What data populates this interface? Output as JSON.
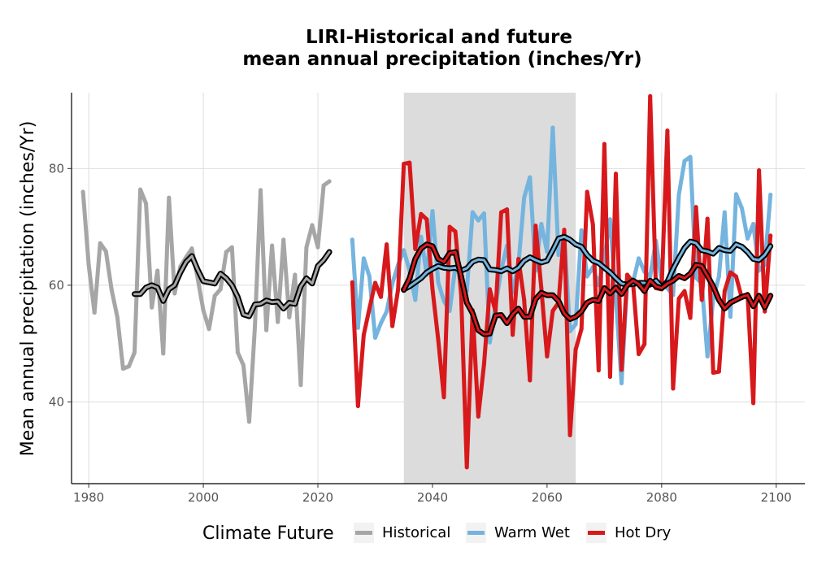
{
  "chart_data": {
    "type": "line",
    "title_line1": "LIRI-Historical and future",
    "title_line2": "mean annual precipitation (inches/Yr)",
    "xlabel": "",
    "ylabel": "Mean annual precipitation (inches/Yr)",
    "xlim": [
      1977,
      2105
    ],
    "ylim": [
      26,
      93
    ],
    "x_ticks": [
      1980,
      2000,
      2020,
      2040,
      2060,
      2080,
      2100
    ],
    "y_ticks": [
      40,
      60,
      80
    ],
    "grid": true,
    "shaded_period": [
      2035,
      2065
    ],
    "legend": {
      "title": "Climate Future",
      "position": "bottom",
      "items": [
        {
          "label": "Historical",
          "color": "#a6a6a6"
        },
        {
          "label": "Warm Wet",
          "color": "#74b4de"
        },
        {
          "label": "Hot Dry",
          "color": "#d7191c"
        }
      ]
    },
    "series": [
      {
        "name": "Historical",
        "color": "#a6a6a6",
        "x": [
          1979,
          1980,
          1981,
          1982,
          1983,
          1984,
          1985,
          1986,
          1987,
          1988,
          1989,
          1990,
          1991,
          1992,
          1993,
          1994,
          1995,
          1996,
          1997,
          1998,
          1999,
          2000,
          2001,
          2002,
          2003,
          2004,
          2005,
          2006,
          2007,
          2008,
          2009,
          2010,
          2011,
          2012,
          2013,
          2014,
          2015,
          2016,
          2017,
          2018,
          2019,
          2020,
          2021,
          2022
        ],
        "values": [
          76,
          63.5,
          55.3,
          67.2,
          65.8,
          59.2,
          54.5,
          45.7,
          46.1,
          48.5,
          76.4,
          74,
          56.2,
          62.5,
          48.3,
          75,
          58.6,
          63.2,
          64.8,
          66.3,
          61.3,
          55.7,
          52.5,
          58.2,
          59.3,
          65.7,
          66.5,
          48.5,
          46.3,
          36.6,
          52.8,
          76.3,
          52.3,
          66.8,
          53.7,
          67.8,
          54.5,
          61.8,
          42.9,
          66.5,
          70.3,
          66.5,
          77.1,
          77.8
        ]
      },
      {
        "name": "Historical rolling mean",
        "color": "#000000",
        "x": [
          1988,
          1989,
          1990,
          1991,
          1992,
          1993,
          1994,
          1995,
          1996,
          1997,
          1998,
          1999,
          2000,
          2001,
          2002,
          2003,
          2004,
          2005,
          2006,
          2007,
          2008,
          2009,
          2010,
          2011,
          2012,
          2013,
          2014,
          2015,
          2016,
          2017,
          2018,
          2019,
          2020,
          2021,
          2022
        ],
        "values": [
          58.5,
          58.5,
          59.6,
          60,
          59.6,
          57.3,
          59.3,
          60,
          62.2,
          64,
          65,
          62.7,
          60.7,
          60.5,
          60.3,
          62,
          61.2,
          60,
          58,
          55,
          54.7,
          56.7,
          56.8,
          57.4,
          57.1,
          57.2,
          56,
          57,
          56.8,
          59.8,
          61.2,
          60.3,
          63.3,
          64.3,
          65.7
        ]
      },
      {
        "name": "Warm Wet",
        "color": "#74b4de",
        "x": [
          2026,
          2027,
          2028,
          2029,
          2030,
          2031,
          2032,
          2033,
          2034,
          2035,
          2036,
          2037,
          2038,
          2039,
          2040,
          2041,
          2042,
          2043,
          2044,
          2045,
          2046,
          2047,
          2048,
          2049,
          2050,
          2051,
          2052,
          2053,
          2054,
          2055,
          2056,
          2057,
          2058,
          2059,
          2060,
          2061,
          2062,
          2063,
          2064,
          2065,
          2066,
          2067,
          2068,
          2069,
          2070,
          2071,
          2072,
          2073,
          2074,
          2075,
          2076,
          2077,
          2078,
          2079,
          2080,
          2081,
          2082,
          2083,
          2084,
          2085,
          2086,
          2087,
          2088,
          2089,
          2090,
          2091,
          2092,
          2093,
          2094,
          2095,
          2096,
          2097,
          2098,
          2099
        ],
        "values": [
          67.8,
          52.7,
          64.6,
          61.5,
          51,
          53.5,
          55.5,
          60.3,
          63.5,
          66,
          62.5,
          57.5,
          68.3,
          61.8,
          72.7,
          60.5,
          57.3,
          55.6,
          63.2,
          61.3,
          59,
          72.5,
          71.1,
          72.3,
          50.2,
          56.5,
          62.6,
          66.8,
          58.8,
          63.6,
          75,
          78.5,
          62.5,
          70.5,
          65.7,
          87,
          65.2,
          68.6,
          52.1,
          53.3,
          69.4,
          61.5,
          63.1,
          60,
          64.8,
          71.3,
          58,
          43.2,
          60.6,
          60.5,
          64.6,
          62.3,
          61.5,
          67.6,
          60.5,
          59.5,
          58.3,
          75.5,
          81.3,
          82,
          61.3,
          60.3,
          47.8,
          57.7,
          61.5,
          72.5,
          54.6,
          75.6,
          73.2,
          68,
          70.5,
          62.5,
          63.5,
          75.5
        ]
      },
      {
        "name": "Warm Wet rolling mean",
        "color": "#000000",
        "x": [
          2035,
          2036,
          2037,
          2038,
          2039,
          2040,
          2041,
          2042,
          2043,
          2044,
          2045,
          2046,
          2047,
          2048,
          2049,
          2050,
          2051,
          2052,
          2053,
          2054,
          2055,
          2056,
          2057,
          2058,
          2059,
          2060,
          2061,
          2062,
          2063,
          2064,
          2065,
          2066,
          2067,
          2068,
          2069,
          2070,
          2071,
          2072,
          2073,
          2074,
          2075,
          2076,
          2077,
          2078,
          2079,
          2080,
          2081,
          2082,
          2083,
          2084,
          2085,
          2086,
          2087,
          2088,
          2089,
          2090,
          2091,
          2092,
          2093,
          2094,
          2095,
          2096,
          2097,
          2098,
          2099
        ],
        "values": [
          59.3,
          59.8,
          60.5,
          61.2,
          62.2,
          62.8,
          63.3,
          63,
          62.9,
          63,
          62.5,
          62.9,
          64,
          64.4,
          64.3,
          62.7,
          62.6,
          62.4,
          62.9,
          62.4,
          63,
          64.2,
          64.8,
          64.3,
          63.9,
          64.2,
          66,
          68,
          68.3,
          67.8,
          67,
          66.6,
          65.2,
          64.2,
          63.8,
          63,
          62.2,
          61.2,
          60.3,
          60.1,
          60.2,
          60.4,
          60.4,
          60.1,
          60.8,
          59.7,
          60.6,
          62.8,
          64.7,
          66.4,
          67.5,
          67.2,
          66,
          65.8,
          65.4,
          66.4,
          66,
          65.9,
          67,
          66.6,
          65.7,
          64.5,
          64.3,
          65.2,
          66.7
        ]
      },
      {
        "name": "Hot Dry",
        "color": "#d7191c",
        "x": [
          2026,
          2027,
          2028,
          2029,
          2030,
          2031,
          2032,
          2033,
          2034,
          2035,
          2036,
          2037,
          2038,
          2039,
          2040,
          2041,
          2042,
          2043,
          2044,
          2045,
          2046,
          2047,
          2048,
          2049,
          2050,
          2051,
          2052,
          2053,
          2054,
          2055,
          2056,
          2057,
          2058,
          2059,
          2060,
          2061,
          2062,
          2063,
          2064,
          2065,
          2066,
          2067,
          2068,
          2069,
          2070,
          2071,
          2072,
          2073,
          2074,
          2075,
          2076,
          2077,
          2078,
          2079,
          2080,
          2081,
          2082,
          2083,
          2084,
          2085,
          2086,
          2087,
          2088,
          2089,
          2090,
          2091,
          2092,
          2093,
          2094,
          2095,
          2096,
          2097,
          2098,
          2099
        ],
        "values": [
          60.5,
          39.3,
          51.5,
          56,
          60.4,
          58,
          67,
          53,
          59.3,
          80.8,
          81,
          66.2,
          72.2,
          71.3,
          59.3,
          50.7,
          40.8,
          70,
          69.2,
          58.5,
          28.8,
          55.7,
          37.5,
          46.5,
          59.3,
          55.5,
          72.5,
          73,
          51.5,
          64.5,
          57.5,
          43.7,
          70.2,
          59.5,
          47.8,
          55.6,
          57,
          69.5,
          34.3,
          49,
          52.5,
          76,
          70.4,
          45.4,
          84.2,
          44.3,
          79.1,
          45.5,
          61.8,
          60.5,
          48.2,
          49.9,
          92.4,
          59.5,
          59.3,
          86.5,
          42.3,
          57.7,
          59,
          54.4,
          73.4,
          57.5,
          71.4,
          45,
          45.2,
          59,
          62.2,
          61.5,
          57.8,
          58.5,
          39.8,
          79.7,
          55.5,
          68.5
        ]
      },
      {
        "name": "Hot Dry rolling mean",
        "color": "#000000",
        "x": [
          2035,
          2036,
          2037,
          2038,
          2039,
          2040,
          2041,
          2042,
          2043,
          2044,
          2045,
          2046,
          2047,
          2048,
          2049,
          2050,
          2051,
          2052,
          2053,
          2054,
          2055,
          2056,
          2057,
          2058,
          2059,
          2060,
          2061,
          2062,
          2063,
          2064,
          2065,
          2066,
          2067,
          2068,
          2069,
          2070,
          2071,
          2072,
          2073,
          2074,
          2075,
          2076,
          2077,
          2078,
          2079,
          2080,
          2081,
          2082,
          2083,
          2084,
          2085,
          2086,
          2087,
          2088,
          2089,
          2090,
          2091,
          2092,
          2093,
          2094,
          2095,
          2096,
          2097,
          2098,
          2099
        ],
        "values": [
          59.2,
          61.2,
          64.5,
          66.3,
          67,
          66.7,
          64.5,
          64,
          65.5,
          65.7,
          61.5,
          57,
          55.2,
          52.3,
          51.6,
          51.7,
          54.8,
          54.9,
          53.5,
          55,
          56,
          54.6,
          54.6,
          57.6,
          58.7,
          58.3,
          58.3,
          57.3,
          55.2,
          54.2,
          54.6,
          55.5,
          57,
          57.5,
          57.3,
          59.5,
          58.6,
          59.6,
          58.5,
          60,
          60.8,
          60.2,
          59,
          60.8,
          59.8,
          59.5,
          60.3,
          60.8,
          61.6,
          61.2,
          62,
          63.5,
          63.3,
          61.6,
          59.8,
          57.5,
          56,
          57,
          57.5,
          58,
          58.3,
          56.4,
          58.2,
          56.2,
          58.2
        ]
      }
    ]
  }
}
